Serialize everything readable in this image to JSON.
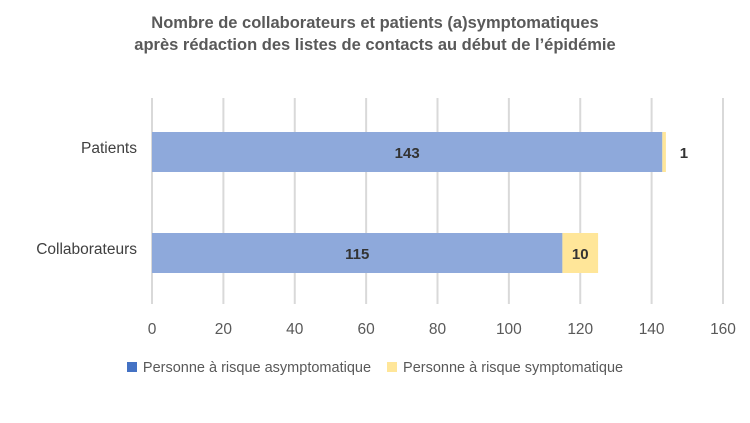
{
  "chart_data": {
    "type": "bar",
    "orientation": "horizontal",
    "stacked": true,
    "title": [
      "Nombre de collaborateurs et patients (a)symptomatiques",
      "après rédaction des listes de contacts au début de l’épidémie"
    ],
    "categories": [
      "Patients",
      "Collaborateurs"
    ],
    "series": [
      {
        "name": "Personne à risque asymptomatique",
        "values": [
          143,
          115
        ],
        "color": "#8EA9DB"
      },
      {
        "name": "Personne à risque symptomatique",
        "values": [
          1,
          10
        ],
        "color": "#FFE699"
      }
    ],
    "xlim": [
      0,
      160
    ],
    "xticks": [
      0,
      20,
      40,
      60,
      80,
      100,
      120,
      140,
      160
    ],
    "grid": "vertical",
    "legend_position": "bottom",
    "legend_swatch_colors": [
      "#4472C4",
      "#FFE699"
    ]
  }
}
